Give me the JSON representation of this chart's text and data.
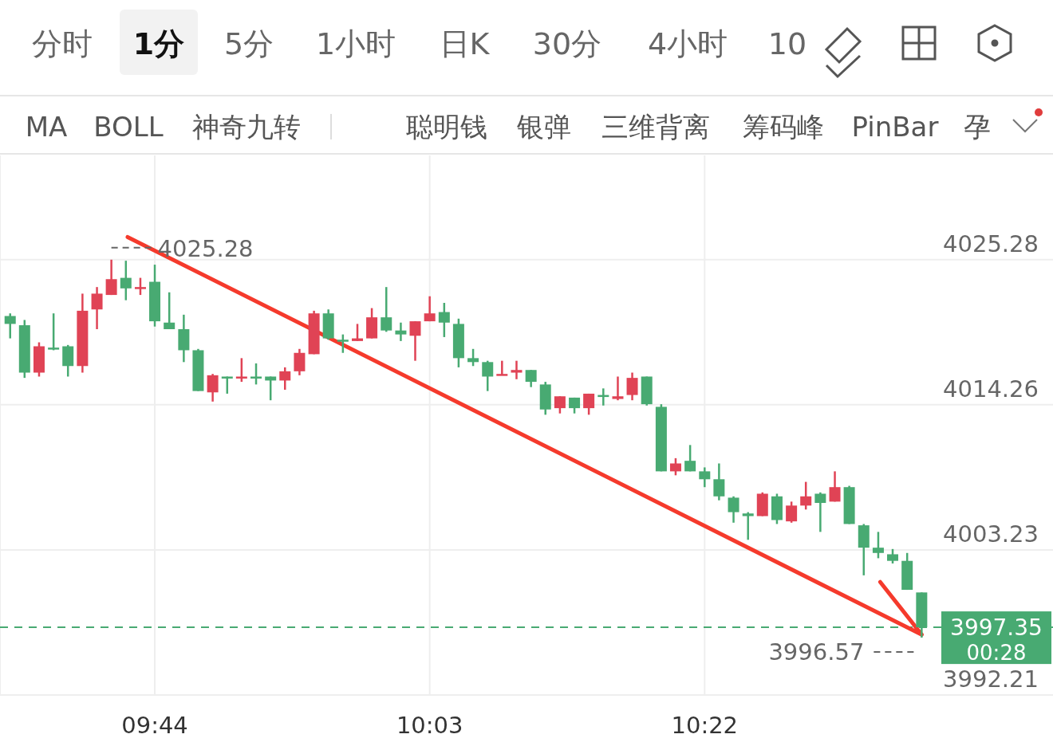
{
  "chart_data": {
    "type": "candlestick",
    "x": [
      9.5667,
      9.5833,
      9.6,
      9.6167,
      9.6333,
      9.65,
      9.6667,
      9.6833,
      9.7,
      9.7167,
      9.7333,
      9.75,
      9.7667,
      9.7833,
      9.8,
      9.8167,
      9.8333,
      9.85,
      9.8667,
      9.8833,
      9.9,
      9.9167,
      9.9333,
      9.95,
      9.9667,
      9.9833,
      10.0,
      10.0167,
      10.0333,
      10.05,
      10.0667,
      10.0833,
      10.1,
      10.1167,
      10.1333,
      10.15,
      10.1667,
      10.1833,
      10.2,
      10.2167,
      10.2333,
      10.25,
      10.2667,
      10.2833,
      10.3,
      10.3167,
      10.3333,
      10.35,
      10.3667,
      10.3833,
      10.4,
      10.4167,
      10.4333,
      10.45,
      10.4667,
      10.4833,
      10.5,
      10.5167,
      10.5333,
      10.55,
      10.5667,
      10.5833,
      10.6,
      10.6167
    ],
    "xlim": [
      9.555,
      10.768
    ],
    "xticks": [
      {
        "value": 9.7333,
        "label": "09:44"
      },
      {
        "value": 10.05,
        "label": "10:03"
      },
      {
        "value": 10.3667,
        "label": "10:22"
      }
    ],
    "series": [
      {
        "type": "line",
        "color": "#f53a2c",
        "x": [
          9.702,
          10.6167
        ],
        "values": [
          4027.0,
          3996.8
        ]
      }
    ],
    "ohlc": [
      [
        4021.0,
        4021.2,
        4019.3,
        4020.4
      ],
      [
        4020.3,
        4020.7,
        4016.3,
        4016.7
      ],
      [
        4016.7,
        4019.0,
        4016.4,
        4018.7
      ],
      [
        4018.6,
        4021.2,
        4018.4,
        4018.5
      ],
      [
        4018.7,
        4018.8,
        4016.4,
        4017.2
      ],
      [
        4017.2,
        4022.7,
        4016.7,
        4021.4
      ],
      [
        4021.5,
        4023.2,
        4020.0,
        4022.7
      ],
      [
        4022.6,
        4025.28,
        4022.6,
        4023.8
      ],
      [
        4023.9,
        4025.2,
        4022.2,
        4023.1
      ],
      [
        4023.1,
        4023.9,
        4022.6,
        4023.2
      ],
      [
        4023.6,
        4024.9,
        4020.2,
        4020.6
      ],
      [
        4020.5,
        4022.8,
        4020.0,
        4020.0
      ],
      [
        4020.0,
        4021.1,
        4017.5,
        4018.4
      ],
      [
        4018.4,
        4018.5,
        4015.3,
        4015.3
      ],
      [
        4015.2,
        4016.6,
        4014.5,
        4016.5
      ],
      [
        4016.4,
        4016.4,
        4015.1,
        4016.3
      ],
      [
        4016.3,
        4017.8,
        4016.0,
        4016.4
      ],
      [
        4016.4,
        4017.4,
        4015.8,
        4016.3
      ],
      [
        4016.4,
        4016.4,
        4014.6,
        4016.1
      ],
      [
        4016.1,
        4017.1,
        4015.4,
        4016.8
      ],
      [
        4016.8,
        4018.5,
        4016.5,
        4018.2
      ],
      [
        4018.1,
        4021.4,
        4018.1,
        4021.2
      ],
      [
        4021.2,
        4021.5,
        4019.2,
        4019.3
      ],
      [
        4019.2,
        4019.6,
        4018.2,
        4019.1
      ],
      [
        4019.1,
        4020.4,
        4019.1,
        4019.3
      ],
      [
        4019.3,
        4021.6,
        4019.3,
        4020.9
      ],
      [
        4020.9,
        4023.2,
        4019.8,
        4019.9
      ],
      [
        4019.9,
        4020.5,
        4019.1,
        4019.6
      ],
      [
        4019.5,
        4020.6,
        4017.6,
        4020.6
      ],
      [
        4020.6,
        4022.5,
        4020.6,
        4021.2
      ],
      [
        4021.3,
        4022.0,
        4019.4,
        4020.5
      ],
      [
        4020.4,
        4020.8,
        4017.1,
        4017.8
      ],
      [
        4017.8,
        4018.5,
        4017.2,
        4017.5
      ],
      [
        4017.5,
        4017.6,
        4015.3,
        4016.4
      ],
      [
        4016.5,
        4017.6,
        4016.5,
        4016.6
      ],
      [
        4016.7,
        4017.6,
        4016.2,
        4016.9
      ],
      [
        4016.9,
        4016.9,
        4015.6,
        4016.0
      ],
      [
        4015.8,
        4016.0,
        4013.5,
        4013.9
      ],
      [
        4014.0,
        4014.9,
        4013.6,
        4014.9
      ],
      [
        4014.8,
        4014.8,
        4013.6,
        4014.0
      ],
      [
        4014.0,
        4015.1,
        4013.5,
        4015.1
      ],
      [
        4015.0,
        4015.5,
        4014.2,
        4014.9
      ],
      [
        4014.7,
        4016.4,
        4014.6,
        4014.9
      ],
      [
        4015.0,
        4016.7,
        4014.6,
        4016.3
      ],
      [
        4016.4,
        4016.4,
        4014.2,
        4014.3
      ],
      [
        4014.1,
        4014.3,
        4009.2,
        4009.2
      ],
      [
        4009.2,
        4010.2,
        4008.9,
        4009.8
      ],
      [
        4010.0,
        4011.2,
        4009.2,
        4009.2
      ],
      [
        4009.2,
        4009.5,
        4008.0,
        4008.6
      ],
      [
        4008.6,
        4009.8,
        4007.0,
        4007.3
      ],
      [
        4007.2,
        4007.3,
        4005.3,
        4006.1
      ],
      [
        4006.0,
        4006.1,
        4004.0,
        4005.8
      ],
      [
        4005.8,
        4007.6,
        4005.8,
        4007.5
      ],
      [
        4007.3,
        4007.5,
        4005.2,
        4005.5
      ],
      [
        4005.4,
        4006.9,
        4005.3,
        4006.6
      ],
      [
        4006.6,
        4008.4,
        4006.3,
        4007.3
      ],
      [
        4007.5,
        4007.6,
        4004.6,
        4006.8
      ],
      [
        4006.9,
        4009.2,
        4006.9,
        4008.0
      ],
      [
        4008.0,
        4008.1,
        4005.2,
        4005.2
      ],
      [
        4005.1,
        4005.2,
        4001.3,
        4003.4
      ],
      [
        4003.4,
        4004.6,
        4002.6,
        4003.0
      ],
      [
        4002.9,
        4003.3,
        4002.2,
        4002.4
      ],
      [
        4002.4,
        4003.0,
        4000.2,
        4000.2
      ],
      [
        4000.0,
        4000.0,
        3996.57,
        3997.35
      ]
    ],
    "colors": [
      "#48aa72",
      "#48aa72",
      "#e04355",
      "#48aa72",
      "#48aa72",
      "#e04355",
      "#e04355",
      "#e04355",
      "#48aa72",
      "#e04355",
      "#48aa72",
      "#48aa72",
      "#48aa72",
      "#48aa72",
      "#e04355",
      "#48aa72",
      "#e04355",
      "#48aa72",
      "#48aa72",
      "#e04355",
      "#e04355",
      "#e04355",
      "#48aa72",
      "#48aa72",
      "#e04355",
      "#e04355",
      "#48aa72",
      "#48aa72",
      "#e04355",
      "#e04355",
      "#48aa72",
      "#48aa72",
      "#48aa72",
      "#48aa72",
      "#e04355",
      "#e04355",
      "#48aa72",
      "#48aa72",
      "#e04355",
      "#48aa72",
      "#e04355",
      "#48aa72",
      "#e04355",
      "#e04355",
      "#48aa72",
      "#48aa72",
      "#e04355",
      "#48aa72",
      "#48aa72",
      "#48aa72",
      "#48aa72",
      "#48aa72",
      "#e04355",
      "#48aa72",
      "#e04355",
      "#e04355",
      "#48aa72",
      "#e04355",
      "#48aa72",
      "#48aa72",
      "#48aa72",
      "#48aa72",
      "#48aa72",
      "#48aa72"
    ],
    "ylim": [
      3992.21,
      4033.2
    ],
    "yticks": [
      4025.28,
      4014.26,
      4003.23,
      3992.21
    ],
    "grid": true,
    "ref_lines": [
      {
        "axis": "y",
        "value": 3997.35,
        "label": "3997.35",
        "color": "#48aa72",
        "line_style": "dashed"
      }
    ],
    "annotations": [
      "分时",
      "1分",
      "5分",
      "1小时",
      "日K",
      "30分",
      "4小时",
      "10",
      "MA",
      "BOLL",
      "神奇九转",
      "聪明钱",
      "银弹",
      "三维背离",
      "筹码峰",
      "PinBar",
      "孕",
      "00:28",
      "4025.28",
      "3996.57"
    ]
  }
}
